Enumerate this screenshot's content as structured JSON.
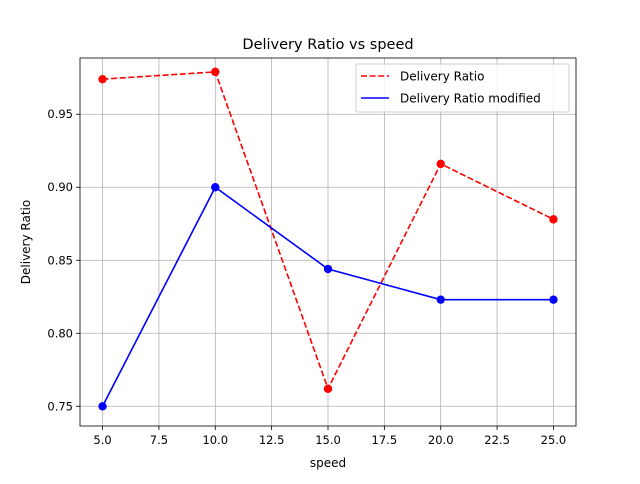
{
  "chart_data": {
    "type": "line",
    "title": "Delivery Ratio vs speed",
    "xlabel": "speed",
    "ylabel": "Delivery Ratio",
    "xlim": [
      4.0,
      26.0
    ],
    "ylim": [
      0.7365,
      0.9885
    ],
    "xticks": [
      5.0,
      7.5,
      10.0,
      12.5,
      15.0,
      17.5,
      20.0,
      22.5,
      25.0
    ],
    "xtick_labels": [
      "5.0",
      "7.5",
      "10.0",
      "12.5",
      "15.0",
      "17.5",
      "20.0",
      "22.5",
      "25.0"
    ],
    "yticks": [
      0.75,
      0.8,
      0.85,
      0.9,
      0.95
    ],
    "ytick_labels": [
      "0.75",
      "0.80",
      "0.85",
      "0.90",
      "0.95"
    ],
    "grid": true,
    "legend_position": "top-right",
    "series": [
      {
        "name": "Delivery Ratio",
        "color": "#ff0000",
        "linestyle": "dashed",
        "x": [
          5,
          10,
          15,
          20,
          25
        ],
        "y": [
          0.974,
          0.979,
          0.762,
          0.916,
          0.878
        ]
      },
      {
        "name": "Delivery Ratio modified",
        "color": "#0000ff",
        "linestyle": "solid",
        "x": [
          5,
          10,
          15,
          20,
          25
        ],
        "y": [
          0.75,
          0.9,
          0.844,
          0.823,
          0.823
        ]
      }
    ]
  }
}
